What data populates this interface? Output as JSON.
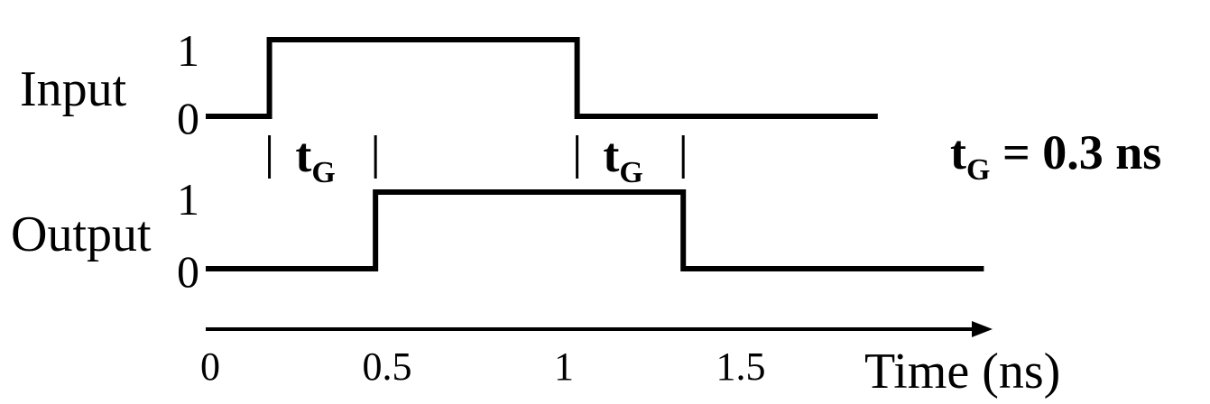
{
  "signals": {
    "input": {
      "label": "Input",
      "level_high": "1",
      "level_low": "0",
      "transitions_ns": [
        0.18,
        1.05
      ],
      "end_ns": 1.9
    },
    "output": {
      "label": "Output",
      "level_high": "1",
      "level_low": "0",
      "transitions_ns": [
        0.48,
        1.35
      ],
      "end_ns": 2.2
    }
  },
  "delay_markers": [
    {
      "letter": "t",
      "subscript": "G",
      "from_ns": 0.18,
      "to_ns": 0.48
    },
    {
      "letter": "t",
      "subscript": "G",
      "from_ns": 1.05,
      "to_ns": 1.35
    }
  ],
  "equation": {
    "letter": "t",
    "subscript": "G",
    "rest": " = 0.3 ns"
  },
  "axis": {
    "title": "Time (ns)",
    "ticks": [
      {
        "label": "0",
        "value": 0
      },
      {
        "label": "0.5",
        "value": 0.5
      },
      {
        "label": "1",
        "value": 1
      },
      {
        "label": "1.5",
        "value": 1.5
      }
    ]
  }
}
